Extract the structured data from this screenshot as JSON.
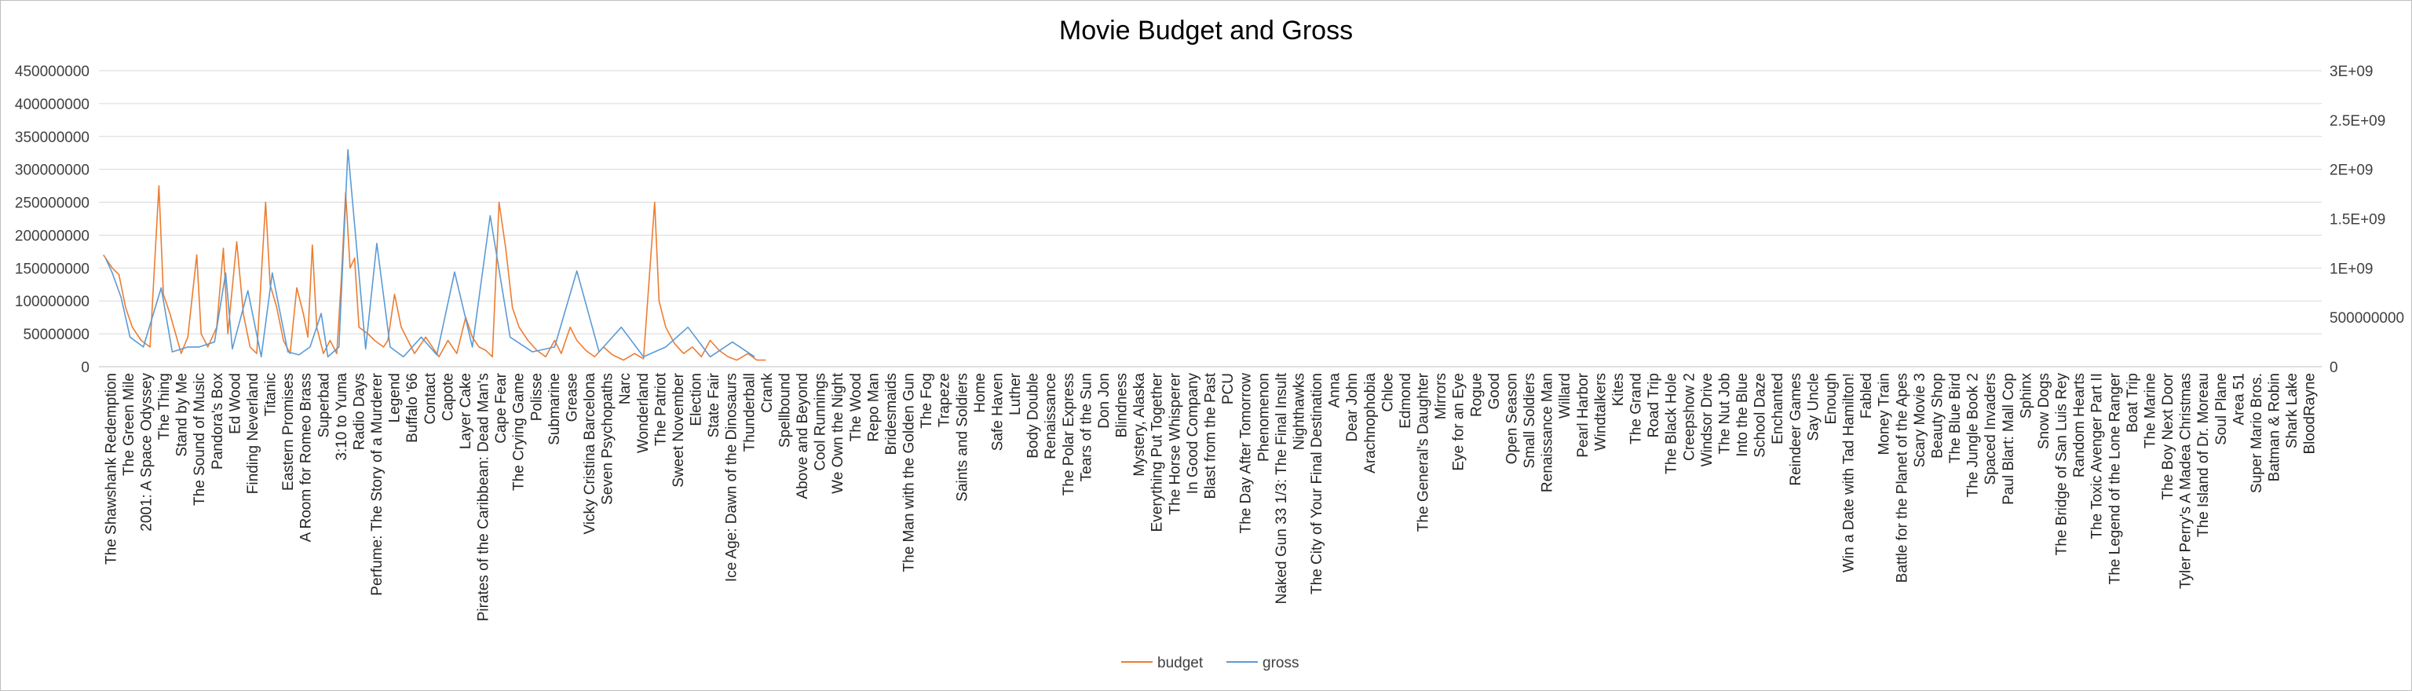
{
  "chart_data": {
    "type": "line",
    "title": "Movie Budget and Gross",
    "xlabel": "",
    "ylabel": "",
    "legend_position": "bottom",
    "grid": true,
    "y_left": {
      "min": 0,
      "max": 450000000,
      "ticks": [
        "0",
        "50000000",
        "100000000",
        "150000000",
        "200000000",
        "250000000",
        "300000000",
        "350000000",
        "400000000",
        "450000000"
      ]
    },
    "y_right": {
      "min": 0,
      "max": 3000000000,
      "ticks": [
        "0",
        "500000000",
        "1E+09",
        "1.5E+09",
        "2E+09",
        "2.5E+09",
        "3E+09"
      ]
    },
    "x_labels": [
      "The Shawshank Redemption",
      "The Green Mile",
      "2001: A Space Odyssey",
      "The Thing",
      "Stand by Me",
      "The Sound of Music",
      "Pandora's Box",
      "Ed Wood",
      "Finding Neverland",
      "Titanic",
      "Eastern Promises",
      "A Room for Romeo Brass",
      "Superbad",
      "3:10 to Yuma",
      "Radio Days",
      "Perfume: The Story of a Murderer",
      "Legend",
      "Buffalo '66",
      "Contact",
      "Capote",
      "Layer Cake",
      "Pirates of the Caribbean: Dead Man's",
      "Cape Fear",
      "The Crying Game",
      "Polisse",
      "Submarine",
      "Grease",
      "Vicky Cristina Barcelona",
      "Seven Psychopaths",
      "Narc",
      "Wonderland",
      "The Patriot",
      "Sweet November",
      "Election",
      "State Fair",
      "Ice Age: Dawn of the Dinosaurs",
      "Thunderball",
      "Crank",
      "Spellbound",
      "Above and Beyond",
      "Cool Runnings",
      "We Own the Night",
      "The Wood",
      "Repo Man",
      "Bridesmaids",
      "The Man with the Golden Gun",
      "The Fog",
      "Trapeze",
      "Saints and Soldiers",
      "Home",
      "Safe Haven",
      "Luther",
      "Body Double",
      "Renaissance",
      "The Polar Express",
      "Tears of the Sun",
      "Don Jon",
      "Blindness",
      "Mystery, Alaska",
      "Everything Put Together",
      "The Horse Whisperer",
      "In Good Company",
      "Blast from the Past",
      "PCU",
      "The Day After Tomorrow",
      "Phenomenon",
      "Naked Gun 33 1/3: The Final Insult",
      "Nighthawks",
      "The City of Your Final Destination",
      "Anna",
      "Dear John",
      "Arachnophobia",
      "Chloe",
      "Edmond",
      "The General's Daughter",
      "Mirrors",
      "Eye for an Eye",
      "Rogue",
      "Good",
      "Open Season",
      "Small Soldiers",
      "Renaissance Man",
      "Willard",
      "Pearl Harbor",
      "Windtalkers",
      "Kites",
      "The Grand",
      "Road Trip",
      "The Black Hole",
      "Creepshow 2",
      "Windsor Drive",
      "The Nut Job",
      "Into the Blue",
      "School Daze",
      "Enchanted",
      "Reindeer Games",
      "Say Uncle",
      "Enough",
      "Win a Date with Tad Hamilton!",
      "Fabled",
      "Money Train",
      "Battle for the Planet of the Apes",
      "Scary Movie 3",
      "Beauty Shop",
      "The Blue Bird",
      "The Jungle Book 2",
      "Spaced Invaders",
      "Paul Blart: Mall Cop",
      "Sphinx",
      "Snow Dogs",
      "The Bridge of San Luis Rey",
      "Random Hearts",
      "The Toxic Avenger Part II",
      "The Legend of the Lone Ranger",
      "Boat Trip",
      "The Marine",
      "The Boy Next Door",
      "Tyler Perry's A Madea Christmas",
      "The Island of Dr. Moreau",
      "Soul Plane",
      "Area 51",
      "Super Mario Bros.",
      "Batman & Robin",
      "Shark Lake",
      "BloodRayne"
    ],
    "series": [
      {
        "name": "budget",
        "axis": "left",
        "color": "#ED7D31",
        "peaks": [
          [
            0.002,
            170000000
          ],
          [
            0.004,
            160000000
          ],
          [
            0.006,
            150000000
          ],
          [
            0.009,
            140000000
          ],
          [
            0.012,
            90000000
          ],
          [
            0.015,
            60000000
          ],
          [
            0.019,
            40000000
          ],
          [
            0.023,
            30000000
          ],
          [
            0.027,
            275000000
          ],
          [
            0.029,
            110000000
          ],
          [
            0.032,
            80000000
          ],
          [
            0.037,
            20000000
          ],
          [
            0.04,
            45000000
          ],
          [
            0.044,
            170000000
          ],
          [
            0.046,
            50000000
          ],
          [
            0.049,
            30000000
          ],
          [
            0.053,
            60000000
          ],
          [
            0.056,
            180000000
          ],
          [
            0.058,
            50000000
          ],
          [
            0.062,
            190000000
          ],
          [
            0.065,
            80000000
          ],
          [
            0.068,
            30000000
          ],
          [
            0.071,
            20000000
          ],
          [
            0.075,
            250000000
          ],
          [
            0.077,
            125000000
          ],
          [
            0.08,
            90000000
          ],
          [
            0.083,
            40000000
          ],
          [
            0.086,
            20000000
          ],
          [
            0.089,
            120000000
          ],
          [
            0.092,
            80000000
          ],
          [
            0.094,
            45000000
          ],
          [
            0.096,
            185000000
          ],
          [
            0.098,
            60000000
          ],
          [
            0.101,
            20000000
          ],
          [
            0.104,
            40000000
          ],
          [
            0.107,
            20000000
          ],
          [
            0.109,
            130000000
          ],
          [
            0.111,
            265000000
          ],
          [
            0.113,
            150000000
          ],
          [
            0.115,
            165000000
          ],
          [
            0.117,
            60000000
          ],
          [
            0.121,
            50000000
          ],
          [
            0.124,
            40000000
          ],
          [
            0.128,
            30000000
          ],
          [
            0.13,
            40000000
          ],
          [
            0.133,
            110000000
          ],
          [
            0.136,
            60000000
          ],
          [
            0.139,
            40000000
          ],
          [
            0.142,
            20000000
          ],
          [
            0.147,
            45000000
          ],
          [
            0.15,
            30000000
          ],
          [
            0.153,
            15000000
          ],
          [
            0.157,
            40000000
          ],
          [
            0.161,
            20000000
          ],
          [
            0.165,
            75000000
          ],
          [
            0.168,
            45000000
          ],
          [
            0.171,
            30000000
          ],
          [
            0.174,
            25000000
          ],
          [
            0.177,
            15000000
          ],
          [
            0.18,
            250000000
          ],
          [
            0.183,
            180000000
          ],
          [
            0.186,
            90000000
          ],
          [
            0.189,
            60000000
          ],
          [
            0.193,
            40000000
          ],
          [
            0.197,
            25000000
          ],
          [
            0.201,
            15000000
          ],
          [
            0.205,
            40000000
          ],
          [
            0.208,
            20000000
          ],
          [
            0.212,
            60000000
          ],
          [
            0.215,
            40000000
          ],
          [
            0.219,
            25000000
          ],
          [
            0.223,
            15000000
          ],
          [
            0.227,
            30000000
          ],
          [
            0.231,
            18000000
          ],
          [
            0.236,
            10000000
          ],
          [
            0.241,
            20000000
          ],
          [
            0.245,
            12000000
          ],
          [
            0.25,
            250000000
          ],
          [
            0.252,
            100000000
          ],
          [
            0.255,
            60000000
          ],
          [
            0.259,
            35000000
          ],
          [
            0.263,
            20000000
          ],
          [
            0.267,
            30000000
          ],
          [
            0.271,
            15000000
          ],
          [
            0.275,
            40000000
          ],
          [
            0.279,
            25000000
          ],
          [
            0.283,
            15000000
          ],
          [
            0.287,
            10000000
          ],
          [
            0.292,
            20000000
          ],
          [
            0.296,
            10000000
          ],
          [
            0.3,
            10000000
          ]
        ]
      },
      {
        "name": "gross",
        "axis": "right",
        "color": "#5B9BD5",
        "peaks": [
          [
            0.003,
            1100000000
          ],
          [
            0.006,
            950000000
          ],
          [
            0.01,
            700000000
          ],
          [
            0.014,
            300000000
          ],
          [
            0.02,
            200000000
          ],
          [
            0.028,
            800000000
          ],
          [
            0.033,
            150000000
          ],
          [
            0.04,
            200000000
          ],
          [
            0.045,
            200000000
          ],
          [
            0.052,
            250000000
          ],
          [
            0.057,
            950000000
          ],
          [
            0.06,
            180000000
          ],
          [
            0.067,
            770000000
          ],
          [
            0.073,
            100000000
          ],
          [
            0.078,
            950000000
          ],
          [
            0.085,
            150000000
          ],
          [
            0.09,
            120000000
          ],
          [
            0.095,
            200000000
          ],
          [
            0.1,
            540000000
          ],
          [
            0.103,
            100000000
          ],
          [
            0.108,
            200000000
          ],
          [
            0.112,
            2200000000
          ],
          [
            0.12,
            180000000
          ],
          [
            0.125,
            1250000000
          ],
          [
            0.131,
            200000000
          ],
          [
            0.137,
            100000000
          ],
          [
            0.145,
            300000000
          ],
          [
            0.152,
            120000000
          ],
          [
            0.16,
            960000000
          ],
          [
            0.168,
            200000000
          ],
          [
            0.176,
            1530000000
          ],
          [
            0.185,
            300000000
          ],
          [
            0.195,
            150000000
          ],
          [
            0.205,
            200000000
          ],
          [
            0.215,
            970000000
          ],
          [
            0.225,
            150000000
          ],
          [
            0.235,
            400000000
          ],
          [
            0.245,
            100000000
          ],
          [
            0.255,
            200000000
          ],
          [
            0.265,
            400000000
          ],
          [
            0.275,
            100000000
          ],
          [
            0.285,
            250000000
          ],
          [
            0.295,
            100000000
          ]
        ]
      }
    ]
  }
}
